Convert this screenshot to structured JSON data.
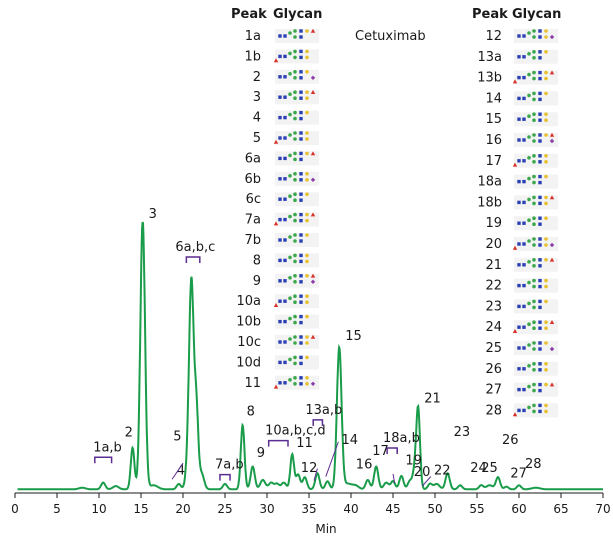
{
  "chart_data": {
    "type": "line",
    "title": "Cetuximab",
    "xlabel": "Min",
    "ylabel": "",
    "xlim": [
      0,
      70
    ],
    "ylim": [
      0,
      100
    ],
    "x_ticks": [
      "0",
      "5",
      "10",
      "15",
      "20",
      "25",
      "30",
      "35",
      "40",
      "45",
      "50",
      "55",
      "60",
      "65",
      "70"
    ],
    "grid": false,
    "line_color": "#1a9c4a",
    "peaks": [
      {
        "label": "1a,b",
        "x": 10.5,
        "y": 2.5,
        "bracket": [
          9.5,
          11.5
        ]
      },
      {
        "label": "2",
        "x": 14.0,
        "y": 15.5
      },
      {
        "label": "3",
        "x": 15.2,
        "y": 100
      },
      {
        "label": "4",
        "x": 19.5,
        "y": 2.0
      },
      {
        "label": "5",
        "x": 20.5,
        "y": 5.0
      },
      {
        "label": "6a,b,c",
        "x": 21.0,
        "y": 78,
        "bracket": [
          20.4,
          22.0
        ]
      },
      {
        "label": "7a,b",
        "x": 25.0,
        "y": 2.0,
        "bracket": [
          24.4,
          25.6
        ]
      },
      {
        "label": "8",
        "x": 27.1,
        "y": 24
      },
      {
        "label": "9",
        "x": 28.3,
        "y": 8.5
      },
      {
        "label": "10a,b,c,d",
        "x": 31.2,
        "y": 2.0,
        "bracket": [
          30.2,
          32.5
        ]
      },
      {
        "label": "11",
        "x": 33.0,
        "y": 13
      },
      {
        "label": "12",
        "x": 34.5,
        "y": 4.5
      },
      {
        "label": "13a,b",
        "x": 36.0,
        "y": 6.0,
        "bracket": [
          35.5,
          36.6
        ]
      },
      {
        "label": "14",
        "x": 37.2,
        "y": 3.0
      },
      {
        "label": "15",
        "x": 38.6,
        "y": 53
      },
      {
        "label": "16",
        "x": 42.0,
        "y": 3.5
      },
      {
        "label": "17",
        "x": 43.0,
        "y": 8.5
      },
      {
        "label": "18a,b",
        "x": 45.0,
        "y": 3.0,
        "bracket": [
          44.3,
          45.5
        ]
      },
      {
        "label": "19",
        "x": 46.0,
        "y": 5.0
      },
      {
        "label": "20",
        "x": 47.0,
        "y": 3.0
      },
      {
        "label": "21",
        "x": 48.0,
        "y": 29
      },
      {
        "label": "22",
        "x": 49.4,
        "y": 2.0
      },
      {
        "label": "23",
        "x": 51.5,
        "y": 6.0
      },
      {
        "label": "24",
        "x": 53.0,
        "y": 1.5
      },
      {
        "label": "25",
        "x": 55.5,
        "y": 1.5
      },
      {
        "label": "26",
        "x": 57.5,
        "y": 4.5
      },
      {
        "label": "27",
        "x": 58.5,
        "y": 1.0
      },
      {
        "label": "28",
        "x": 60.0,
        "y": 1.5
      }
    ]
  },
  "legend_table": {
    "header_peak": "Peak",
    "header_glycan": "Glycan",
    "left_peaks": [
      "1a",
      "1b",
      "2",
      "3",
      "4",
      "5",
      "6a",
      "6b",
      "6c",
      "7a",
      "7b",
      "8",
      "9",
      "10a",
      "10b",
      "10c",
      "10d",
      "11"
    ],
    "right_peaks": [
      "12",
      "13a",
      "13b",
      "14",
      "15",
      "16",
      "17",
      "18a",
      "18b",
      "19",
      "20",
      "21",
      "22",
      "23",
      "24",
      "25",
      "26",
      "27",
      "28"
    ],
    "glycan_icon": "glycan-structure-icon"
  },
  "colors": {
    "trace": "#1a9c4a",
    "bracket": "#5b2c91",
    "axis": "#1a1a1a",
    "glycan_blue": "#2b3fb5",
    "glycan_green": "#3aa84a",
    "glycan_yellow": "#e7c02e",
    "glycan_red": "#d9312a",
    "glycan_purple": "#8b3ea8"
  }
}
